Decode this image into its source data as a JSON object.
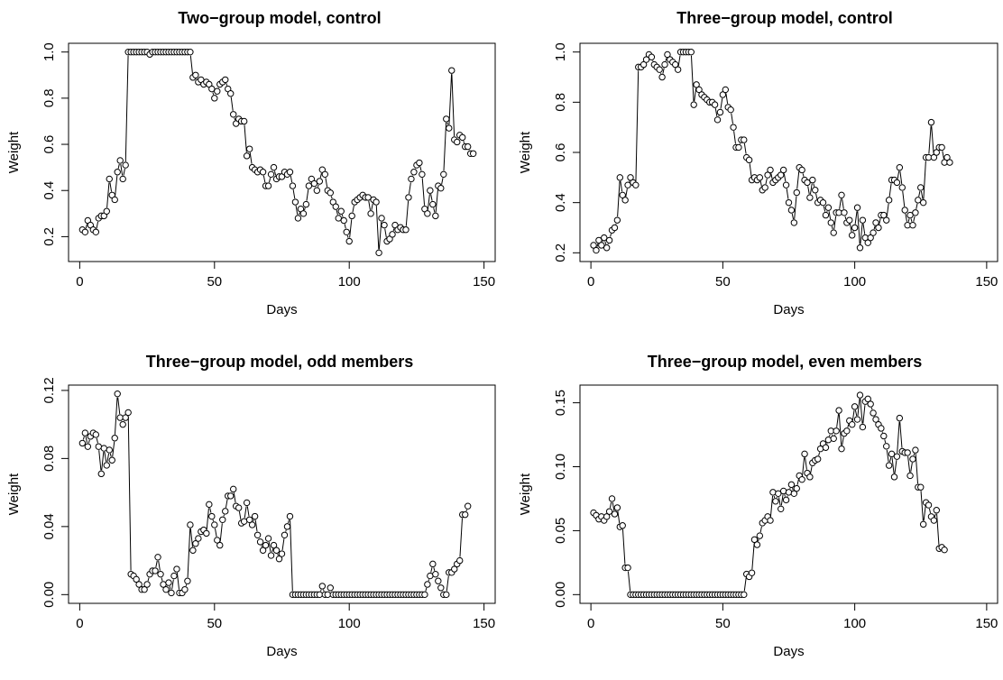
{
  "chart_data": [
    {
      "type": "line",
      "title": "Two−group model, control",
      "xlabel": "Days",
      "ylabel": "Weight",
      "xlim": [
        1,
        149
      ],
      "ylim": [
        0.13,
        1.0
      ],
      "xticks": [
        0,
        50,
        100,
        150
      ],
      "xtick_labels": [
        "0",
        "50",
        "100",
        "150"
      ],
      "yticks": [
        0.2,
        0.4,
        0.6,
        0.8,
        1.0
      ],
      "ytick_labels": [
        "0.2",
        "0.4",
        "0.6",
        "0.8",
        "1.0"
      ],
      "marker": "open-circle",
      "x_start": 1,
      "values": [
        0.23,
        0.22,
        0.27,
        0.25,
        0.23,
        0.22,
        0.28,
        0.29,
        0.29,
        0.31,
        0.45,
        0.38,
        0.36,
        0.48,
        0.53,
        0.45,
        0.51,
        1.0,
        1.0,
        1.0,
        1.0,
        1.0,
        1.0,
        1.0,
        1.0,
        0.99,
        1.0,
        1.0,
        1.0,
        1.0,
        1.0,
        1.0,
        1.0,
        1.0,
        1.0,
        1.0,
        1.0,
        1.0,
        1.0,
        1.0,
        1.0,
        0.89,
        0.9,
        0.87,
        0.88,
        0.86,
        0.87,
        0.86,
        0.84,
        0.8,
        0.83,
        0.86,
        0.87,
        0.88,
        0.84,
        0.82,
        0.73,
        0.69,
        0.71,
        0.7,
        0.7,
        0.55,
        0.58,
        0.5,
        0.49,
        0.48,
        0.49,
        0.48,
        0.42,
        0.42,
        0.47,
        0.5,
        0.45,
        0.46,
        0.46,
        0.48,
        0.47,
        0.48,
        0.42,
        0.35,
        0.28,
        0.32,
        0.3,
        0.34,
        0.42,
        0.45,
        0.43,
        0.4,
        0.44,
        0.49,
        0.47,
        0.4,
        0.39,
        0.35,
        0.33,
        0.28,
        0.31,
        0.27,
        0.22,
        0.18,
        0.29,
        0.35,
        0.36,
        0.37,
        0.38,
        0.37,
        0.37,
        0.3,
        0.36,
        0.35,
        0.13,
        0.28,
        0.25,
        0.18,
        0.19,
        0.21,
        0.25,
        0.23,
        0.24,
        0.23,
        0.23,
        0.37,
        0.45,
        0.48,
        0.51,
        0.52,
        0.47,
        0.32,
        0.3,
        0.4,
        0.34,
        0.29,
        0.42,
        0.41,
        0.47,
        0.71,
        0.67,
        0.92,
        0.62,
        0.61,
        0.64,
        0.63,
        0.59,
        0.59,
        0.56,
        0.56
      ]
    },
    {
      "type": "line",
      "title": "Three−group model, control",
      "xlabel": "Days",
      "ylabel": "Weight",
      "xlim": [
        1,
        149
      ],
      "ylim": [
        0.2,
        1.0
      ],
      "xticks": [
        0,
        50,
        100,
        150
      ],
      "xtick_labels": [
        "0",
        "50",
        "100",
        "150"
      ],
      "yticks": [
        0.2,
        0.4,
        0.6,
        0.8,
        1.0
      ],
      "ytick_labels": [
        "0.2",
        "0.4",
        "0.6",
        "0.8",
        "1.0"
      ],
      "marker": "open-circle",
      "x_start": 1,
      "values": [
        0.23,
        0.21,
        0.25,
        0.23,
        0.26,
        0.22,
        0.25,
        0.29,
        0.3,
        0.33,
        0.5,
        0.43,
        0.41,
        0.47,
        0.5,
        0.48,
        0.47,
        0.94,
        0.94,
        0.95,
        0.97,
        0.99,
        0.98,
        0.95,
        0.94,
        0.93,
        0.9,
        0.95,
        0.99,
        0.97,
        0.96,
        0.95,
        0.93,
        1.0,
        1.0,
        1.0,
        1.0,
        1.0,
        0.79,
        0.87,
        0.85,
        0.83,
        0.82,
        0.81,
        0.8,
        0.8,
        0.79,
        0.73,
        0.76,
        0.83,
        0.85,
        0.78,
        0.77,
        0.7,
        0.62,
        0.62,
        0.65,
        0.65,
        0.58,
        0.57,
        0.49,
        0.5,
        0.49,
        0.5,
        0.45,
        0.46,
        0.51,
        0.53,
        0.48,
        0.49,
        0.5,
        0.51,
        0.53,
        0.47,
        0.4,
        0.37,
        0.32,
        0.44,
        0.54,
        0.53,
        0.49,
        0.48,
        0.42,
        0.49,
        0.45,
        0.4,
        0.41,
        0.4,
        0.35,
        0.38,
        0.32,
        0.28,
        0.36,
        0.36,
        0.43,
        0.36,
        0.32,
        0.33,
        0.27,
        0.3,
        0.38,
        0.22,
        0.33,
        0.26,
        0.24,
        0.26,
        0.28,
        0.32,
        0.3,
        0.35,
        0.35,
        0.33,
        0.41,
        0.49,
        0.49,
        0.48,
        0.54,
        0.46,
        0.37,
        0.31,
        0.35,
        0.31,
        0.36,
        0.41,
        0.46,
        0.4,
        0.58,
        0.58,
        0.72,
        0.58,
        0.6,
        0.62,
        0.62,
        0.56,
        0.58,
        0.56
      ]
    },
    {
      "type": "line",
      "title": "Three−group model, odd members",
      "xlabel": "Days",
      "ylabel": "Weight",
      "xlim": [
        1,
        149
      ],
      "ylim": [
        0.0,
        0.118
      ],
      "xticks": [
        0,
        50,
        100,
        150
      ],
      "xtick_labels": [
        "0",
        "50",
        "100",
        "150"
      ],
      "yticks": [
        0.0,
        0.04,
        0.08,
        0.12
      ],
      "ytick_labels": [
        "0.00",
        "0.04",
        "0.08",
        "0.12"
      ],
      "marker": "open-circle",
      "x_start": 1,
      "values": [
        0.089,
        0.095,
        0.087,
        0.093,
        0.095,
        0.094,
        0.087,
        0.071,
        0.086,
        0.076,
        0.085,
        0.079,
        0.092,
        0.118,
        0.104,
        0.1,
        0.104,
        0.107,
        0.012,
        0.011,
        0.009,
        0.006,
        0.003,
        0.003,
        0.006,
        0.012,
        0.014,
        0.014,
        0.022,
        0.012,
        0.006,
        0.003,
        0.007,
        0.001,
        0.011,
        0.015,
        0.001,
        0.001,
        0.003,
        0.008,
        0.041,
        0.026,
        0.03,
        0.033,
        0.037,
        0.038,
        0.036,
        0.053,
        0.046,
        0.041,
        0.032,
        0.029,
        0.044,
        0.049,
        0.058,
        0.058,
        0.062,
        0.052,
        0.051,
        0.042,
        0.043,
        0.054,
        0.044,
        0.041,
        0.046,
        0.035,
        0.031,
        0.026,
        0.029,
        0.033,
        0.023,
        0.029,
        0.026,
        0.021,
        0.024,
        0.035,
        0.04,
        0.046,
        0.0,
        0.0,
        0.0,
        0.0,
        0.0,
        0.0,
        0.0,
        0.0,
        0.0,
        0.0,
        0.0,
        0.005,
        0.0,
        0.0,
        0.004,
        0.0,
        0.0,
        0.0,
        0.0,
        0.0,
        0.0,
        0.0,
        0.0,
        0.0,
        0.0,
        0.0,
        0.0,
        0.0,
        0.0,
        0.0,
        0.0,
        0.0,
        0.0,
        0.0,
        0.0,
        0.0,
        0.0,
        0.0,
        0.0,
        0.0,
        0.0,
        0.0,
        0.0,
        0.0,
        0.0,
        0.0,
        0.0,
        0.0,
        0.0,
        0.0,
        0.006,
        0.011,
        0.018,
        0.012,
        0.008,
        0.004,
        0.0,
        0.0,
        0.013,
        0.013,
        0.015,
        0.018,
        0.02,
        0.047,
        0.047,
        0.052
      ]
    },
    {
      "type": "line",
      "title": "Three−group model, even members",
      "xlabel": "Days",
      "ylabel": "Weight",
      "xlim": [
        1,
        149
      ],
      "ylim": [
        0.0,
        0.157
      ],
      "xticks": [
        0,
        50,
        100,
        150
      ],
      "xtick_labels": [
        "0",
        "50",
        "100",
        "150"
      ],
      "yticks": [
        0.0,
        0.05,
        0.1,
        0.15
      ],
      "ytick_labels": [
        "0.00",
        "0.05",
        "0.10",
        "0.15"
      ],
      "marker": "open-circle",
      "x_start": 1,
      "values": [
        0.064,
        0.062,
        0.059,
        0.061,
        0.058,
        0.061,
        0.065,
        0.075,
        0.063,
        0.068,
        0.053,
        0.054,
        0.021,
        0.021,
        0.0,
        0.0,
        0.0,
        0.0,
        0.0,
        0.0,
        0.0,
        0.0,
        0.0,
        0.0,
        0.0,
        0.0,
        0.0,
        0.0,
        0.0,
        0.0,
        0.0,
        0.0,
        0.0,
        0.0,
        0.0,
        0.0,
        0.0,
        0.0,
        0.0,
        0.0,
        0.0,
        0.0,
        0.0,
        0.0,
        0.0,
        0.0,
        0.0,
        0.0,
        0.0,
        0.0,
        0.0,
        0.0,
        0.0,
        0.0,
        0.0,
        0.0,
        0.0,
        0.0,
        0.016,
        0.014,
        0.017,
        0.043,
        0.039,
        0.046,
        0.056,
        0.058,
        0.061,
        0.058,
        0.08,
        0.073,
        0.079,
        0.067,
        0.081,
        0.074,
        0.08,
        0.086,
        0.079,
        0.083,
        0.093,
        0.09,
        0.11,
        0.095,
        0.092,
        0.103,
        0.105,
        0.106,
        0.114,
        0.118,
        0.115,
        0.121,
        0.128,
        0.122,
        0.128,
        0.144,
        0.114,
        0.126,
        0.128,
        0.136,
        0.133,
        0.147,
        0.137,
        0.156,
        0.131,
        0.151,
        0.153,
        0.149,
        0.142,
        0.137,
        0.133,
        0.13,
        0.124,
        0.116,
        0.101,
        0.11,
        0.092,
        0.108,
        0.138,
        0.112,
        0.111,
        0.111,
        0.093,
        0.106,
        0.113,
        0.084,
        0.084,
        0.055,
        0.072,
        0.07,
        0.061,
        0.058,
        0.066,
        0.036,
        0.037,
        0.035
      ]
    }
  ]
}
